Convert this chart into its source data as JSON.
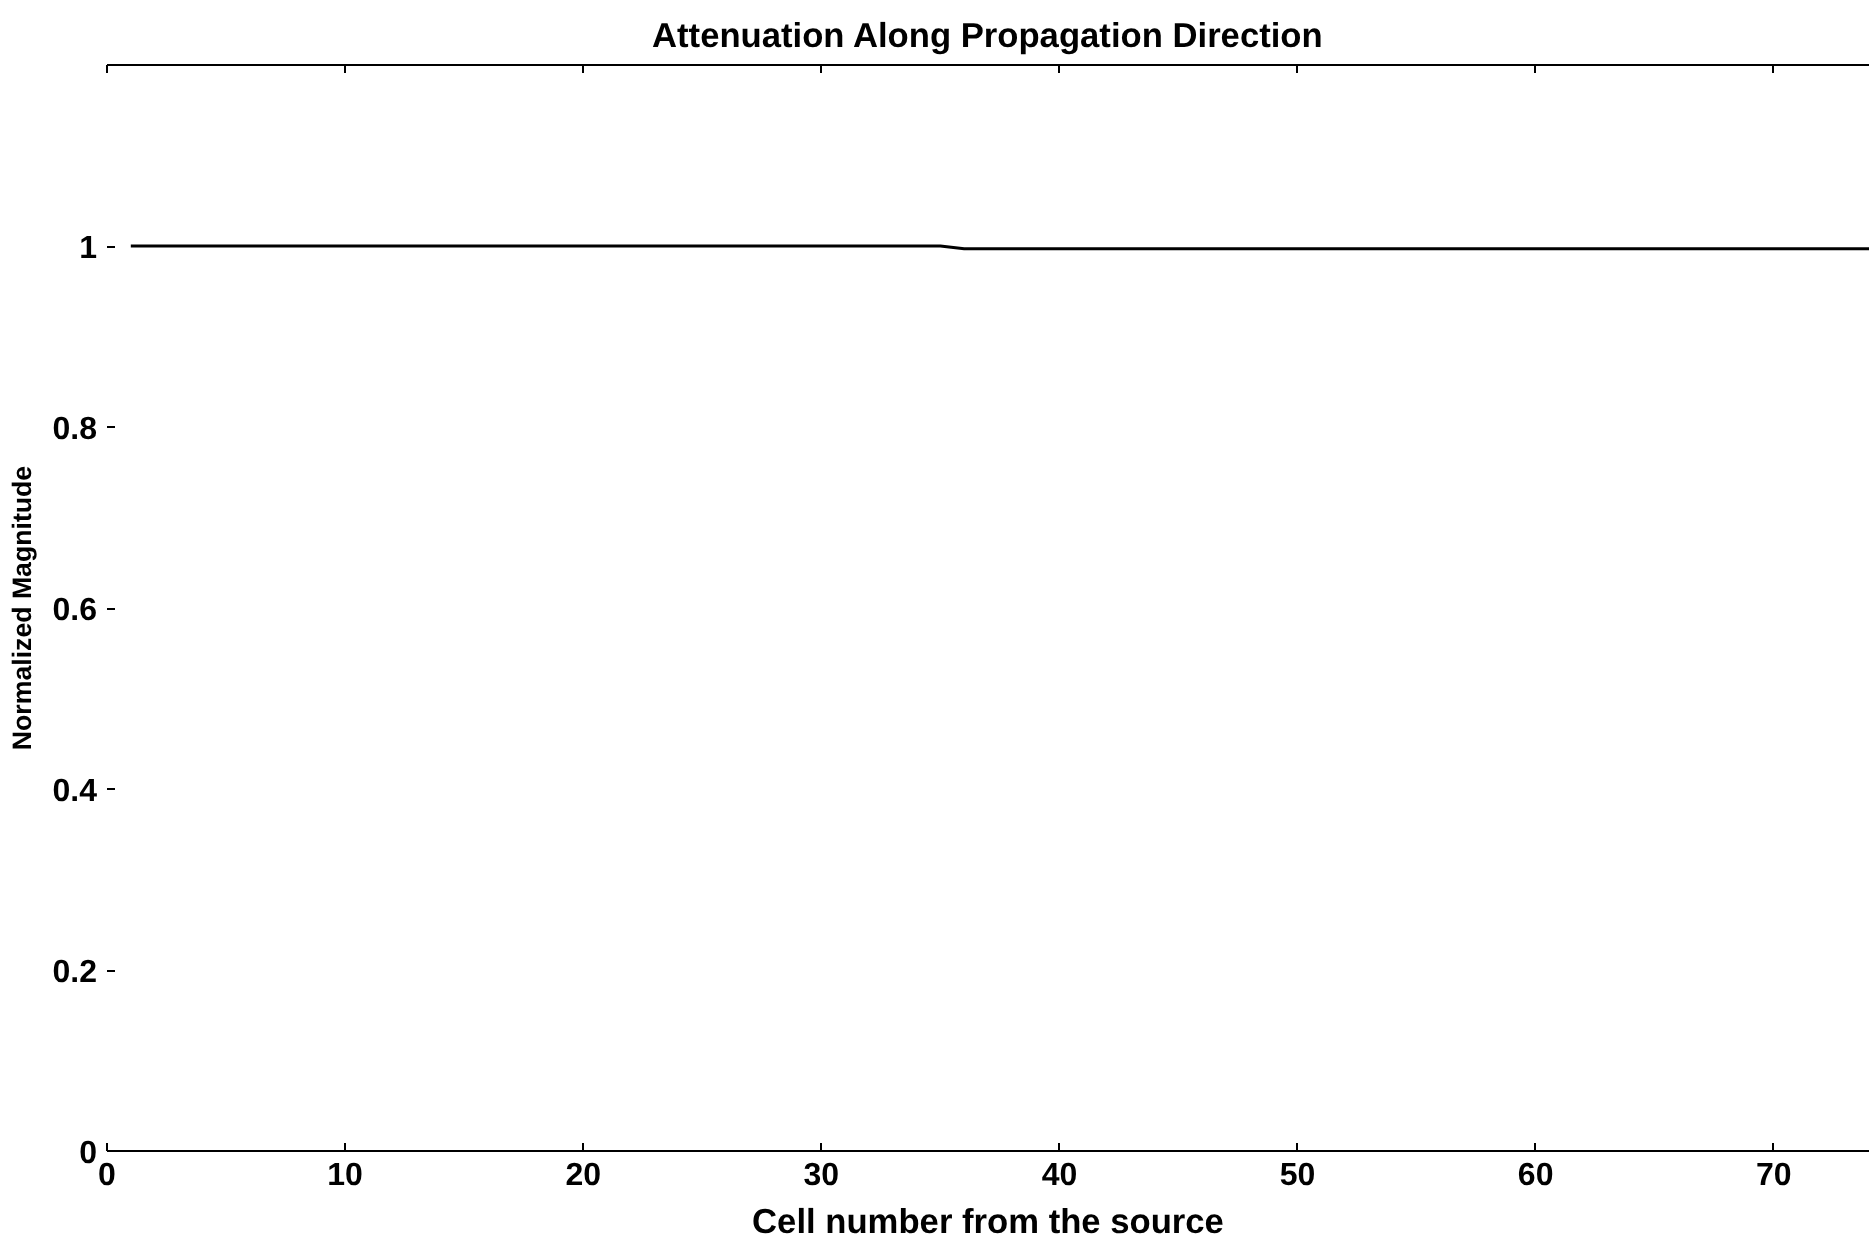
{
  "chart_data": {
    "type": "line",
    "title": "Attenuation Along Propagation Direction",
    "xlabel": "Cell number from the source",
    "ylabel": "Normalized Magnitude",
    "xlim": [
      0,
      74
    ],
    "ylim": [
      0,
      1.2
    ],
    "xticks": [
      0,
      10,
      20,
      30,
      40,
      50,
      60,
      70
    ],
    "yticks": [
      0,
      0.2,
      0.4,
      0.6,
      0.8,
      1
    ],
    "series": [
      {
        "color": "#000000",
        "x": [
          1,
          35,
          36,
          74
        ],
        "values": [
          1,
          1,
          0.997,
          0.997
        ]
      }
    ],
    "grid": false
  }
}
